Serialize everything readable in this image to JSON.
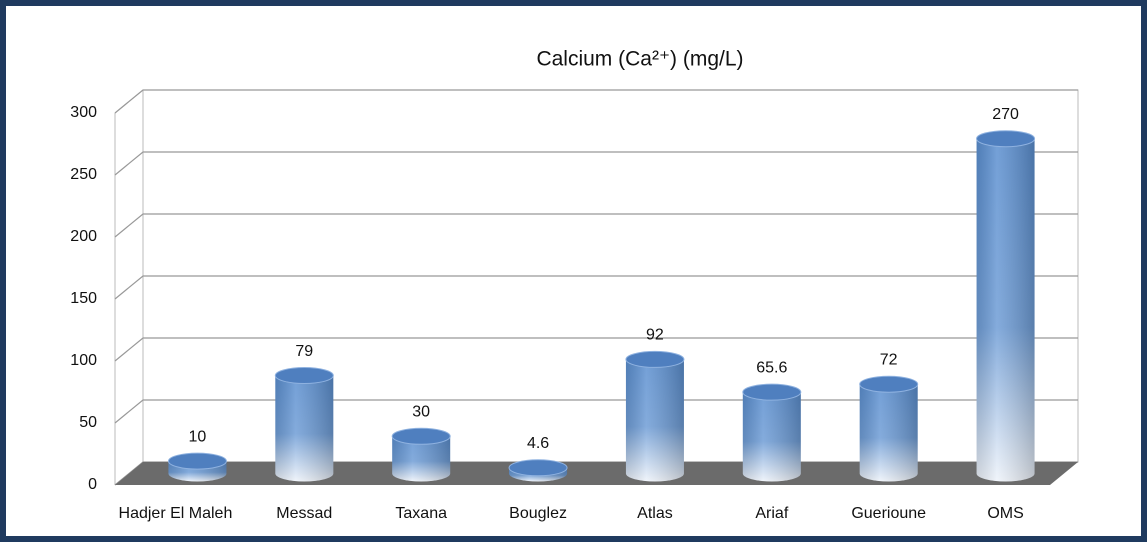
{
  "chart_data": {
    "type": "bar",
    "title": "Calcium (Ca²⁺)   (mg/L)",
    "categories": [
      "Hadjer El Maleh",
      "Messad",
      "Taxana",
      "Bouglez",
      "Atlas",
      "Ariaf",
      "Guerioune",
      "OMS"
    ],
    "values": [
      10,
      79,
      30,
      4.6,
      92,
      65.6,
      72,
      270
    ],
    "color": "#5b8fd0",
    "ylim": [
      0,
      300
    ],
    "yticks": [
      0,
      50,
      100,
      150,
      200,
      250,
      300
    ],
    "grid": true
  }
}
